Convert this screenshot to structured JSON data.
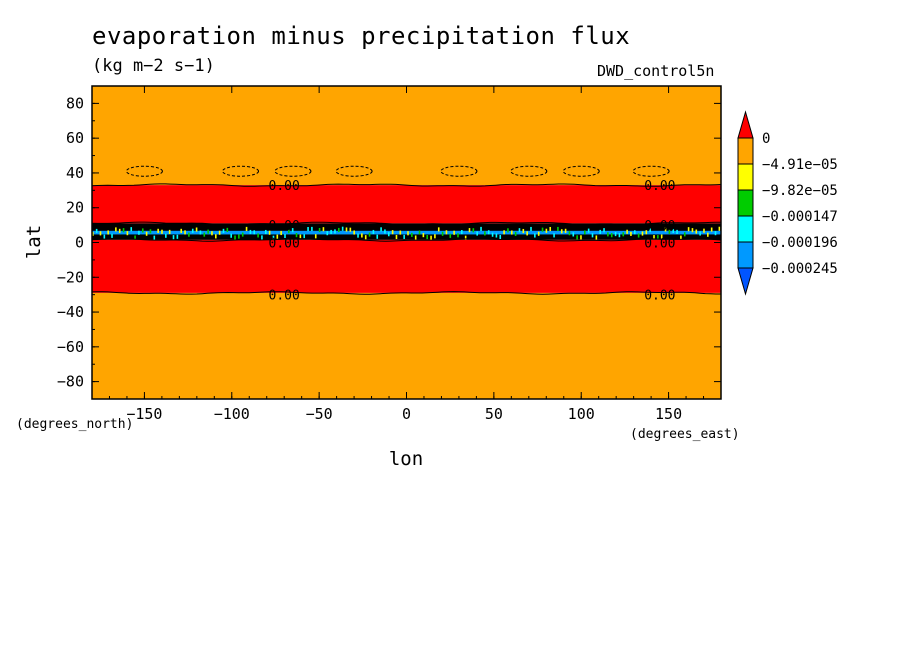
{
  "chart_data": {
    "type": "heatmap",
    "title": "evaporation minus precipitation flux",
    "subtitle": "(kg m−2 s−1)",
    "run_label": "DWD_control5n",
    "xlabel": "lon",
    "ylabel": "lat",
    "x_units": "(degrees_east)",
    "y_units": "(degrees_north)",
    "xlim": [
      -180,
      180
    ],
    "ylim": [
      -90,
      90
    ],
    "x_ticks": [
      -150,
      -100,
      -50,
      0,
      50,
      100,
      150
    ],
    "x_tick_labels": [
      "−150",
      "−100",
      "−50",
      "0",
      "50",
      "100",
      "150"
    ],
    "y_ticks": [
      -80,
      -60,
      -40,
      -20,
      0,
      20,
      40,
      60,
      80
    ],
    "y_tick_labels": [
      "−80",
      "−60",
      "−40",
      "−20",
      "0",
      "20",
      "40",
      "60",
      "80"
    ],
    "colorbar": {
      "levels": [
        "0",
        "−4.91e−05",
        "−9.82e−05",
        "−0.000147",
        "−0.000196",
        "−0.000245"
      ],
      "colors": [
        "#ff0000",
        "#ffa500",
        "#ffff00",
        "#00cc00",
        "#00ffff",
        "#0099ff",
        "#0055ff"
      ]
    },
    "zonal_bands": [
      {
        "lat_min": 33,
        "lat_max": 90,
        "color": "#ffa500"
      },
      {
        "lat_min": 11,
        "lat_max": 33,
        "color": "#ff0000"
      },
      {
        "lat_min": 1.5,
        "lat_max": 11,
        "color": "#000000"
      },
      {
        "lat_min": -29,
        "lat_max": 1.5,
        "color": "#ff0000"
      },
      {
        "lat_min": -90,
        "lat_max": -29,
        "color": "#ffa500"
      }
    ],
    "itcz_band": {
      "lat_min": 1.5,
      "lat_max": 11,
      "min_color": "#0099ff",
      "mid_colors": [
        "#00ffff",
        "#ffff00",
        "#00cc00"
      ]
    },
    "zero_contours_lat": [
      33,
      11,
      1.5,
      -29
    ],
    "contour_label": "0.00",
    "contour_label_points": [
      {
        "lon": -70,
        "lat": 33
      },
      {
        "lon": 145,
        "lat": 33
      },
      {
        "lon": -70,
        "lat": 10
      },
      {
        "lon": 145,
        "lat": 10
      },
      {
        "lon": -70,
        "lat": 0
      },
      {
        "lon": 145,
        "lat": 0
      },
      {
        "lon": -70,
        "lat": -30
      },
      {
        "lon": 145,
        "lat": -30
      }
    ],
    "dashed_cells_lat": 41,
    "dashed_cells_lon": [
      -150,
      -95,
      -65,
      -30,
      30,
      70,
      100,
      140
    ]
  }
}
